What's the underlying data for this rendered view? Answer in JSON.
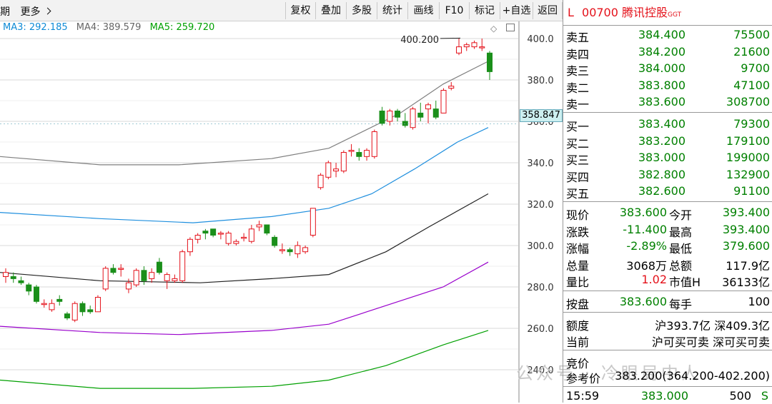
{
  "toolbar": {
    "period_label": "期",
    "more_label": "更多",
    "more_icon": "chevron-right-icon",
    "buttons": [
      "复权",
      "叠加",
      "多股",
      "统计",
      "画线",
      "F10",
      "标记",
      "+自选",
      "返回"
    ]
  },
  "ma": {
    "ma3": "MA3: 292.185",
    "ma4": "MA4: 389.579",
    "ma5": "MA5: 259.720",
    "colors": {
      "ma3": "#0f8bd6",
      "ma4": "#666666",
      "ma5": "#00a000"
    }
  },
  "chart_data": {
    "type": "candlestick",
    "y_axis_ticks": [
      "400.0",
      "380.0",
      "360.0",
      "340.0",
      "320.0",
      "300.0",
      "280.0",
      "260.0",
      "240.0"
    ],
    "ylim": [
      232,
      410
    ],
    "high_annotation": "400.200",
    "current_price_label": "358.847",
    "candles": [
      {
        "o": 285,
        "c": 287,
        "h": 289,
        "l": 282
      },
      {
        "o": 285,
        "c": 284,
        "h": 287,
        "l": 282
      },
      {
        "o": 283,
        "c": 282,
        "h": 285,
        "l": 281
      },
      {
        "o": 281,
        "c": 278,
        "h": 282,
        "l": 276
      },
      {
        "o": 280,
        "c": 273,
        "h": 281,
        "l": 272
      },
      {
        "o": 272,
        "c": 272,
        "h": 274,
        "l": 270
      },
      {
        "o": 269,
        "c": 272,
        "h": 274,
        "l": 268
      },
      {
        "o": 274,
        "c": 273,
        "h": 276,
        "l": 271
      },
      {
        "o": 267,
        "c": 265,
        "h": 268,
        "l": 264
      },
      {
        "o": 264,
        "c": 272,
        "h": 273,
        "l": 263
      },
      {
        "o": 272,
        "c": 268,
        "h": 273,
        "l": 266
      },
      {
        "o": 269,
        "c": 268,
        "h": 271,
        "l": 267
      },
      {
        "o": 268,
        "c": 275,
        "h": 276,
        "l": 268
      },
      {
        "o": 279,
        "c": 289,
        "h": 290,
        "l": 278
      },
      {
        "o": 289,
        "c": 287,
        "h": 291,
        "l": 286
      },
      {
        "o": 289,
        "c": 289,
        "h": 291,
        "l": 285
      },
      {
        "o": 279,
        "c": 282,
        "h": 284,
        "l": 277
      },
      {
        "o": 281,
        "c": 288,
        "h": 289,
        "l": 280
      },
      {
        "o": 288,
        "c": 283,
        "h": 290,
        "l": 281
      },
      {
        "o": 284,
        "c": 287,
        "h": 289,
        "l": 282
      },
      {
        "o": 292,
        "c": 287,
        "h": 294,
        "l": 286
      },
      {
        "o": 283,
        "c": 286,
        "h": 287,
        "l": 279
      },
      {
        "o": 283,
        "c": 284,
        "h": 286,
        "l": 282
      },
      {
        "o": 283,
        "c": 297,
        "h": 298,
        "l": 282
      },
      {
        "o": 297,
        "c": 303,
        "h": 304,
        "l": 295
      },
      {
        "o": 303,
        "c": 305,
        "h": 306,
        "l": 301
      },
      {
        "o": 307,
        "c": 306,
        "h": 308,
        "l": 303
      },
      {
        "o": 308,
        "c": 305,
        "h": 308,
        "l": 304
      },
      {
        "o": 306,
        "c": 306,
        "h": 307,
        "l": 303
      },
      {
        "o": 301,
        "c": 306,
        "h": 307,
        "l": 300
      },
      {
        "o": 301,
        "c": 302,
        "h": 303,
        "l": 300
      },
      {
        "o": 304,
        "c": 304,
        "h": 306,
        "l": 302
      },
      {
        "o": 302,
        "c": 308,
        "h": 310,
        "l": 301
      },
      {
        "o": 309,
        "c": 310,
        "h": 312,
        "l": 307
      },
      {
        "o": 310,
        "c": 306,
        "h": 310,
        "l": 305
      },
      {
        "o": 304,
        "c": 300,
        "h": 305,
        "l": 299
      },
      {
        "o": 298,
        "c": 298,
        "h": 301,
        "l": 296
      },
      {
        "o": 298,
        "c": 297,
        "h": 299,
        "l": 295
      },
      {
        "o": 296,
        "c": 300,
        "h": 302,
        "l": 294
      },
      {
        "o": 297,
        "c": 299,
        "h": 300,
        "l": 296
      },
      {
        "o": 305,
        "c": 318,
        "h": 318,
        "l": 304
      },
      {
        "o": 328,
        "c": 334,
        "h": 335,
        "l": 327
      },
      {
        "o": 333,
        "c": 340,
        "h": 341,
        "l": 332
      },
      {
        "o": 336,
        "c": 337,
        "h": 340,
        "l": 333
      },
      {
        "o": 336,
        "c": 345,
        "h": 346,
        "l": 335
      },
      {
        "o": 346,
        "c": 346,
        "h": 349,
        "l": 343
      },
      {
        "o": 345,
        "c": 343,
        "h": 347,
        "l": 341
      },
      {
        "o": 343,
        "c": 346,
        "h": 347,
        "l": 341
      },
      {
        "o": 343,
        "c": 355,
        "h": 356,
        "l": 342
      },
      {
        "o": 365,
        "c": 359,
        "h": 367,
        "l": 358
      },
      {
        "o": 360,
        "c": 365,
        "h": 366,
        "l": 358
      },
      {
        "o": 365,
        "c": 362,
        "h": 366,
        "l": 360
      },
      {
        "o": 360,
        "c": 358,
        "h": 364,
        "l": 357
      },
      {
        "o": 357,
        "c": 366,
        "h": 367,
        "l": 356
      },
      {
        "o": 364,
        "c": 362,
        "h": 369,
        "l": 360
      },
      {
        "o": 366,
        "c": 368,
        "h": 369,
        "l": 359
      },
      {
        "o": 366,
        "c": 362,
        "h": 370,
        "l": 361
      },
      {
        "o": 364,
        "c": 375,
        "h": 376,
        "l": 364
      },
      {
        "o": 376,
        "c": 377,
        "h": 379,
        "l": 375
      },
      {
        "o": 393,
        "c": 396,
        "h": 400,
        "l": 392
      },
      {
        "o": 396,
        "c": 397,
        "h": 398,
        "l": 394
      },
      {
        "o": 396,
        "c": 398,
        "h": 399,
        "l": 395
      },
      {
        "o": 396,
        "c": 396,
        "h": 400,
        "l": 394
      },
      {
        "o": 393,
        "c": 384,
        "h": 394,
        "l": 380
      }
    ],
    "bands": [
      {
        "name": "band1",
        "color": "#7f7f7f",
        "points": [
          [
            0,
            343
          ],
          [
            140,
            339
          ],
          [
            250,
            339
          ],
          [
            380,
            342
          ],
          [
            460,
            347
          ],
          [
            560,
            364
          ],
          [
            620,
            378
          ],
          [
            683,
            389
          ]
        ]
      },
      {
        "name": "band2",
        "color": "#1f8fde",
        "points": [
          [
            0,
            316
          ],
          [
            140,
            313
          ],
          [
            270,
            311
          ],
          [
            380,
            314
          ],
          [
            460,
            318
          ],
          [
            520,
            325
          ],
          [
            580,
            337
          ],
          [
            640,
            350
          ],
          [
            683,
            357
          ]
        ]
      },
      {
        "name": "band3",
        "color": "#222222",
        "points": [
          [
            0,
            287
          ],
          [
            140,
            283
          ],
          [
            280,
            282
          ],
          [
            380,
            284
          ],
          [
            460,
            286
          ],
          [
            540,
            297
          ],
          [
            600,
            309
          ],
          [
            683,
            325
          ]
        ]
      },
      {
        "name": "band4",
        "color": "#9900cc",
        "points": [
          [
            0,
            261
          ],
          [
            140,
            258
          ],
          [
            250,
            257
          ],
          [
            380,
            259
          ],
          [
            460,
            262
          ],
          [
            540,
            271
          ],
          [
            620,
            280
          ],
          [
            683,
            292
          ]
        ]
      },
      {
        "name": "band5",
        "color": "#00a000",
        "points": [
          [
            0,
            235
          ],
          [
            140,
            231
          ],
          [
            270,
            231
          ],
          [
            380,
            232
          ],
          [
            460,
            235
          ],
          [
            540,
            242
          ],
          [
            620,
            252
          ],
          [
            683,
            259
          ]
        ]
      }
    ]
  },
  "quote": {
    "flag": "L",
    "code": "00700",
    "name": "腾讯控股",
    "suffix": "GGT",
    "asks": [
      {
        "label": "卖五",
        "price": "384.400",
        "vol": "75500"
      },
      {
        "label": "卖四",
        "price": "384.200",
        "vol": "21600"
      },
      {
        "label": "卖三",
        "price": "384.000",
        "vol": "9700"
      },
      {
        "label": "卖二",
        "price": "383.800",
        "vol": "47100"
      },
      {
        "label": "卖一",
        "price": "383.600",
        "vol": "308700"
      }
    ],
    "bids": [
      {
        "label": "买一",
        "price": "383.400",
        "vol": "79300"
      },
      {
        "label": "买二",
        "price": "383.200",
        "vol": "179100"
      },
      {
        "label": "买三",
        "price": "383.000",
        "vol": "199000"
      },
      {
        "label": "买四",
        "price": "382.800",
        "vol": "132900"
      },
      {
        "label": "买五",
        "price": "382.600",
        "vol": "91100"
      }
    ],
    "stats": [
      {
        "l1": "现价",
        "v1": "383.600",
        "l2": "今开",
        "v2": "393.400"
      },
      {
        "l1": "涨跌",
        "v1": "-11.400",
        "l2": "最高",
        "v2": "393.400"
      },
      {
        "l1": "涨幅",
        "v1": "-2.89%",
        "l2": "最低",
        "v2": "379.600"
      },
      {
        "l1": "总量",
        "v1": "3068万",
        "l2": "总额",
        "v2": "117.9亿"
      },
      {
        "l1": "量比",
        "v1": "1.02",
        "l2": "市值H",
        "v2": "36133亿"
      }
    ],
    "after_hours": {
      "l1": "按盘",
      "v1": "383.600",
      "l2": "每手",
      "v2": "100"
    },
    "quota": {
      "label": "额度",
      "value": "沪393.7亿 深409.3亿"
    },
    "current": {
      "label": "当前",
      "value": "沪可买可卖 深可买可卖"
    },
    "auction": {
      "label1": "竞价",
      "label2": "参考价",
      "value": "383.200(364.200-402.200)"
    },
    "last_trade": {
      "time": "15:59",
      "price": "383.000",
      "vol": "500",
      "side": "S"
    }
  },
  "watermark": "公众号 · 冷眼局中人"
}
